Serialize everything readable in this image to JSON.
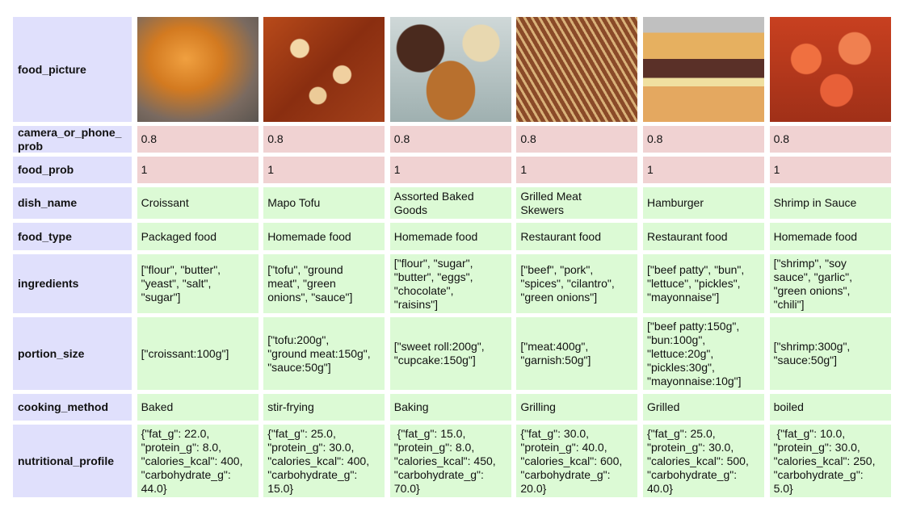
{
  "row_labels": [
    "food_picture",
    "camera_or_phone_\nprob",
    "food_prob",
    "dish_name",
    "food_type",
    "ingredients",
    "portion_size",
    "cooking_method",
    "nutritional_profile"
  ],
  "colors": {
    "label_bg": "#e0e0fc",
    "prob_bg": "#f0d2d2",
    "value_bg": "#dcfad5"
  },
  "columns": [
    {
      "picture": "croissant photo",
      "camera_or_phone_prob": "0.8",
      "food_prob": "1",
      "dish_name": "Croissant",
      "food_type": "Packaged food",
      "ingredients": "[\"flour\", \"butter\",\n\"yeast\", \"salt\",\n\"sugar\"]",
      "portion_size": "[\"croissant:100g\"]",
      "cooking_method": "Baked",
      "nutritional_profile": "{\"fat_g\": 22.0,\n\"protein_g\": 8.0,\n\"calories_kcal\": 400,\n\"carbohydrate_g\":\n44.0}"
    },
    {
      "picture": "mapo tofu photo",
      "camera_or_phone_prob": "0.8",
      "food_prob": "1",
      "dish_name": "Mapo Tofu",
      "food_type": "Homemade food",
      "ingredients": "[\"tofu\", \"ground\nmeat\", \"green\nonions\", \"sauce\"]",
      "portion_size": "[\"tofu:200g\",\n\"ground meat:150g\",\n\"sauce:50g\"]",
      "cooking_method": "stir-frying",
      "nutritional_profile": "{\"fat_g\": 25.0,\n\"protein_g\": 30.0,\n\"calories_kcal\": 400,\n\"carbohydrate_g\":\n15.0}"
    },
    {
      "picture": "baked goods photo",
      "camera_or_phone_prob": "0.8",
      "food_prob": "1",
      "dish_name": "Assorted Baked\nGoods",
      "food_type": "Homemade food",
      "ingredients": "[\"flour\", \"sugar\",\n\"butter\", \"eggs\",\n\"chocolate\",\n\"raisins\"]",
      "portion_size": "[\"sweet roll:200g\",\n\"cupcake:150g\"]",
      "cooking_method": "Baking",
      "nutritional_profile": " {\"fat_g\": 15.0,\n\"protein_g\": 8.0,\n\"calories_kcal\": 450,\n\"carbohydrate_g\":\n70.0}"
    },
    {
      "picture": "meat skewers photo",
      "camera_or_phone_prob": "0.8",
      "food_prob": "1",
      "dish_name": "Grilled Meat\nSkewers",
      "food_type": "Restaurant food",
      "ingredients": "[\"beef\", \"pork\",\n\"spices\", \"cilantro\",\n\"green onions\"]",
      "portion_size": "[\"meat:400g\",\n\"garnish:50g\"]",
      "cooking_method": "Grilling",
      "nutritional_profile": "{\"fat_g\": 30.0,\n\"protein_g\": 40.0,\n\"calories_kcal\": 600,\n\"carbohydrate_g\":\n20.0}"
    },
    {
      "picture": "hamburger photo",
      "camera_or_phone_prob": "0.8",
      "food_prob": "1",
      "dish_name": "Hamburger",
      "food_type": "Restaurant food",
      "ingredients": "[\"beef patty\", \"bun\",\n\"lettuce\", \"pickles\",\n\"mayonnaise\"]",
      "portion_size": "[\"beef patty:150g\",\n\"bun:100g\",\n\"lettuce:20g\",\n\"pickles:30g\",\n\"mayonnaise:10g\"]",
      "cooking_method": "Grilled",
      "nutritional_profile": "{\"fat_g\": 25.0,\n\"protein_g\": 30.0,\n\"calories_kcal\": 500,\n\"carbohydrate_g\":\n40.0}"
    },
    {
      "picture": "shrimp photo",
      "camera_or_phone_prob": "0.8",
      "food_prob": "1",
      "dish_name": "Shrimp in Sauce",
      "food_type": "Homemade food",
      "ingredients": "[\"shrimp\", \"soy\nsauce\", \"garlic\",\n\"green onions\",\n\"chili\"]",
      "portion_size": "[\"shrimp:300g\",\n\"sauce:50g\"]",
      "cooking_method": "boiled",
      "nutritional_profile": " {\"fat_g\": 10.0,\n\"protein_g\": 30.0,\n\"calories_kcal\": 250,\n\"carbohydrate_g\":\n5.0}"
    }
  ]
}
